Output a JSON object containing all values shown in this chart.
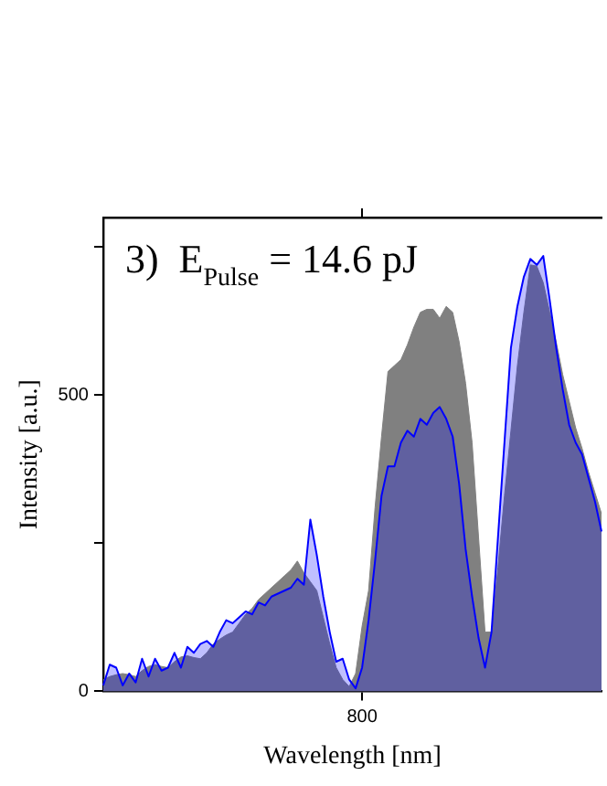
{
  "chart_data": {
    "type": "area",
    "xlabel": "Wavelength [nm]",
    "ylabel": "Intensity [a.u.]",
    "annotations": [
      "3)  E$_{Pulse}$ = 14.6 pJ"
    ],
    "categories": [
      null,
      null,
      null,
      null,
      null,
      null,
      null,
      null,
      null,
      null,
      null,
      null,
      null,
      null,
      null,
      null,
      null,
      null,
      null,
      null,
      null,
      null,
      null,
      null,
      null,
      null,
      null,
      null,
      null,
      null,
      null,
      null,
      null,
      null,
      null,
      null,
      null,
      null,
      null,
      null,
      "800",
      null,
      null,
      null,
      null,
      null,
      null,
      null,
      null,
      null,
      null,
      null,
      null,
      null,
      null,
      null,
      null,
      null,
      null,
      null,
      null,
      null,
      null,
      null,
      null,
      null,
      null,
      null,
      null,
      null,
      null,
      null,
      null,
      null,
      null,
      null,
      null,
      null
    ],
    "ylim": [
      0,
      800
    ],
    "yticks": [
      0,
      {
        "value": 250,
        "label": null
      },
      500,
      {
        "value": 750,
        "label": null
      }
    ],
    "series": [
      {
        "color": "#808080",
        "values": [
          20,
          25,
          28,
          30,
          28,
          25,
          35,
          42,
          45,
          42,
          40,
          50,
          58,
          60,
          57,
          55,
          65,
          80,
          88,
          95,
          100,
          115,
          130,
          140,
          155,
          165,
          175,
          185,
          195,
          205,
          220,
          200,
          185,
          170,
          125,
          80,
          40,
          20,
          8,
          30,
          110,
          170,
          310,
          430,
          540,
          550,
          560,
          585,
          615,
          640,
          645,
          645,
          630,
          650,
          640,
          590,
          520,
          420,
          260,
          100,
          100,
          210,
          330,
          440,
          550,
          640,
          720,
          718,
          690,
          640,
          590,
          535,
          490,
          445,
          410,
          370,
          335,
          300
        ]
      },
      {
        "color": "#0000ff",
        "values": [
          10,
          45,
          40,
          10,
          30,
          15,
          55,
          25,
          55,
          35,
          40,
          65,
          40,
          75,
          65,
          80,
          85,
          75,
          100,
          120,
          115,
          125,
          135,
          130,
          150,
          145,
          160,
          165,
          170,
          175,
          190,
          180,
          290,
          230,
          160,
          100,
          50,
          55,
          20,
          5,
          40,
          120,
          220,
          330,
          380,
          380,
          420,
          440,
          430,
          460,
          450,
          470,
          480,
          460,
          430,
          350,
          240,
          160,
          90,
          40,
          100,
          260,
          420,
          580,
          650,
          700,
          730,
          720,
          735,
          660,
          580,
          510,
          450,
          420,
          400,
          360,
          320,
          270
        ]
      }
    ]
  }
}
